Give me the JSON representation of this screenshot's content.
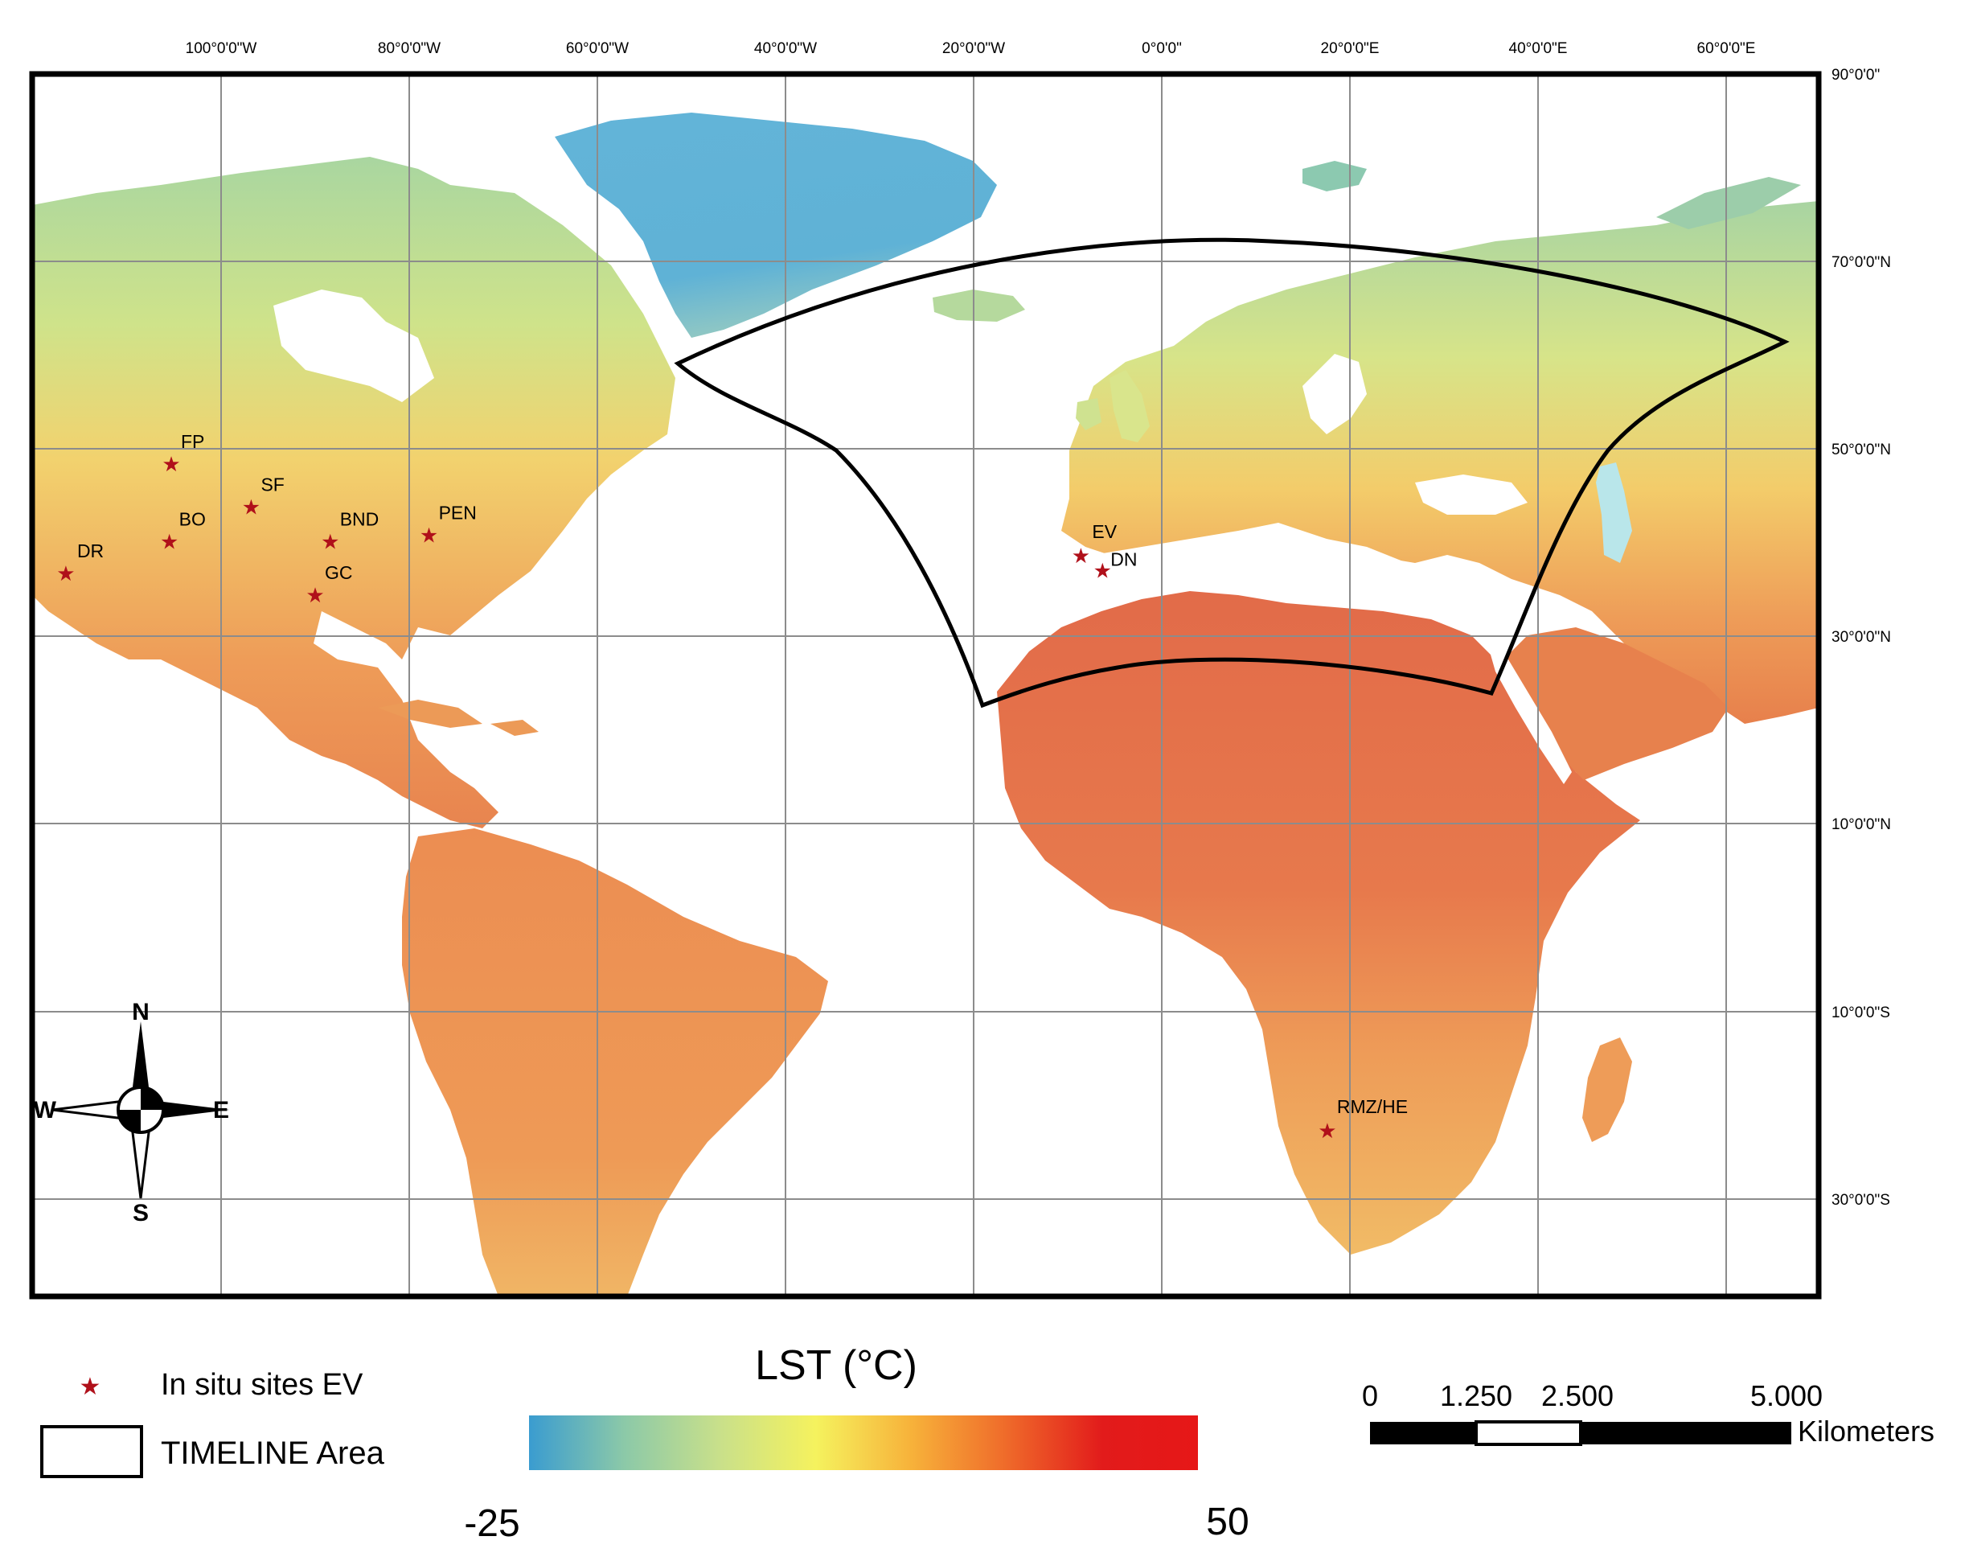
{
  "graticule": {
    "top_labels": [
      "100°0'0\"W",
      "80°0'0\"W",
      "60°0'0\"W",
      "40°0'0\"W",
      "20°0'0\"W",
      "0°0'0\"",
      "20°0'0\"E",
      "40°0'0\"E",
      "60°0'0\"E"
    ],
    "right_labels": [
      "90°0'0\"",
      "70°0'0\"N",
      "50°0'0\"N",
      "30°0'0\"N",
      "10°0'0\"N",
      "10°0'0\"S",
      "30°0'0\"S"
    ]
  },
  "sites": [
    {
      "code": "FP",
      "lon": -105.3,
      "lat": 48.3
    },
    {
      "code": "SF",
      "lon": -96.8,
      "lat": 43.7
    },
    {
      "code": "BO",
      "lon": -105.5,
      "lat": 40.0
    },
    {
      "code": "BND",
      "lon": -88.4,
      "lat": 40.0
    },
    {
      "code": "PEN",
      "lon": -77.9,
      "lat": 40.7
    },
    {
      "code": "DR",
      "lon": -116.5,
      "lat": 36.6
    },
    {
      "code": "GC",
      "lon": -90.0,
      "lat": 34.3
    },
    {
      "code": "EV",
      "lon": -8.6,
      "lat": 38.5
    },
    {
      "code": "DN",
      "lon": -6.3,
      "lat": 36.9
    },
    {
      "code": "RMZ/HE",
      "lon": 17.6,
      "lat": -23.0
    }
  ],
  "compass": {
    "north": "N",
    "south": "S",
    "east": "E",
    "west": "W"
  },
  "legend": {
    "sites_label": "In situ sites  EV",
    "area_label": "TIMELINE Area"
  },
  "colorbar": {
    "title": "LST (°C)",
    "min_label": "-25",
    "max_label": "50",
    "colors": [
      "#3a9cd0",
      "#8cc9a8",
      "#c9e08a",
      "#f5f25e",
      "#f7b23a",
      "#ef6a2a",
      "#e21b1b",
      "#e61717"
    ]
  },
  "scalebar": {
    "labels": [
      "0",
      "1.250",
      "2.500",
      "5.000"
    ],
    "unit": "Kilometers"
  },
  "colors": {
    "ice": "#63b4d8",
    "tundra": "#a9d6a0",
    "boreal": "#cfe38a",
    "temperate": "#efc86a",
    "warm": "#ee9a56",
    "hot": "#e26b49",
    "frame": "#000000",
    "grid": "#8c8c8c",
    "star": "#b0101a"
  }
}
